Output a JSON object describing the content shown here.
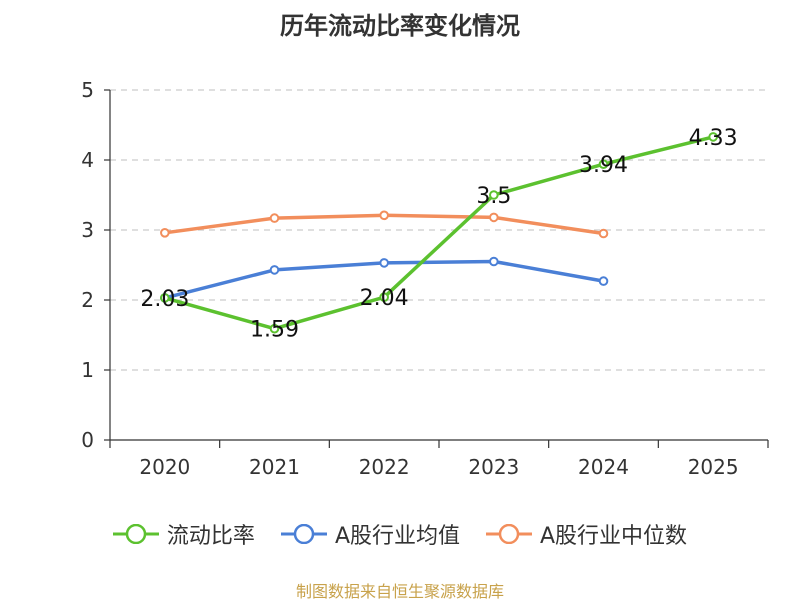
{
  "chart_data": {
    "type": "line",
    "title": "历年流动比率变化情况",
    "categories": [
      "2020",
      "2021",
      "2022",
      "2023",
      "2024",
      "2025"
    ],
    "ylim": [
      0,
      5
    ],
    "yticks": [
      "0",
      "1",
      "2",
      "3",
      "4",
      "5"
    ],
    "grid": true,
    "legend_position": "bottom",
    "series": [
      {
        "name": "流动比率",
        "color": "#5cc12f",
        "values": [
          2.03,
          1.59,
          2.04,
          3.5,
          3.94,
          4.33
        ],
        "labels": [
          "2.03",
          "1.59",
          "2.04",
          "3.5",
          "3.94",
          "4.33"
        ]
      },
      {
        "name": "A股行业均值",
        "color": "#4a7fd6",
        "values": [
          2.03,
          2.43,
          2.53,
          2.55,
          2.27,
          null
        ]
      },
      {
        "name": "A股行业中位数",
        "color": "#f28e5c",
        "values": [
          2.96,
          3.17,
          3.21,
          3.18,
          2.95,
          null
        ]
      }
    ]
  },
  "source": "制图数据来自恒生聚源数据库"
}
